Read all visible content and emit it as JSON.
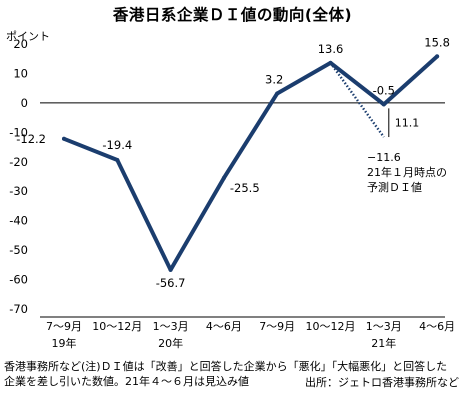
{
  "chart_data": {
    "type": "line",
    "title": "香港日系企業ＤＩ値の動向(全体)",
    "ylabel": "ポイント",
    "ylim": [
      -70,
      20
    ],
    "yticks": [
      20,
      10,
      0,
      -10,
      -20,
      -30,
      -40,
      -50,
      -60,
      -70
    ],
    "categories": [
      "7～9月",
      "10～12月",
      "1～3月",
      "4～6月",
      "7～9月",
      "10～12月",
      "1～3月",
      "4～6月"
    ],
    "year_labels": [
      {
        "label": "19年",
        "index": 0
      },
      {
        "label": "20年",
        "index": 2
      },
      {
        "label": "21年",
        "index": 6
      }
    ],
    "series": [
      {
        "values": [
          -12.2,
          -19.4,
          -56.7,
          -25.5,
          3.2,
          13.6,
          -0.5,
          15.8
        ],
        "data_labels": [
          "-12.2",
          "-19.4",
          "-56.7",
          "-25.5",
          "3.2",
          "13.6",
          "-0.5",
          "15.8"
        ],
        "color": "#1b3d6e",
        "style": "solid"
      },
      {
        "values": [
          null,
          null,
          null,
          null,
          null,
          13.6,
          -11.6,
          null
        ],
        "data_labels": [
          "",
          "",
          "",
          "",
          "",
          "",
          "−11.6",
          ""
        ],
        "color": "#1b3d6e",
        "style": "dotted"
      }
    ],
    "annotations": {
      "gap_value": "11.1",
      "forecast_lines": [
        "21年１月時点の",
        "予測ＤＩ値"
      ]
    },
    "grid": false,
    "zero_line": true
  },
  "footnote_lines": [
    "香港事務所など(注)ＤＩ値は「改善」と回答した企業から「悪化」「大幅悪化」と回答した",
    "企業を差し引いた数値。21年４～６月は見込み値"
  ],
  "source": "出所：ジェトロ香港事務所など"
}
